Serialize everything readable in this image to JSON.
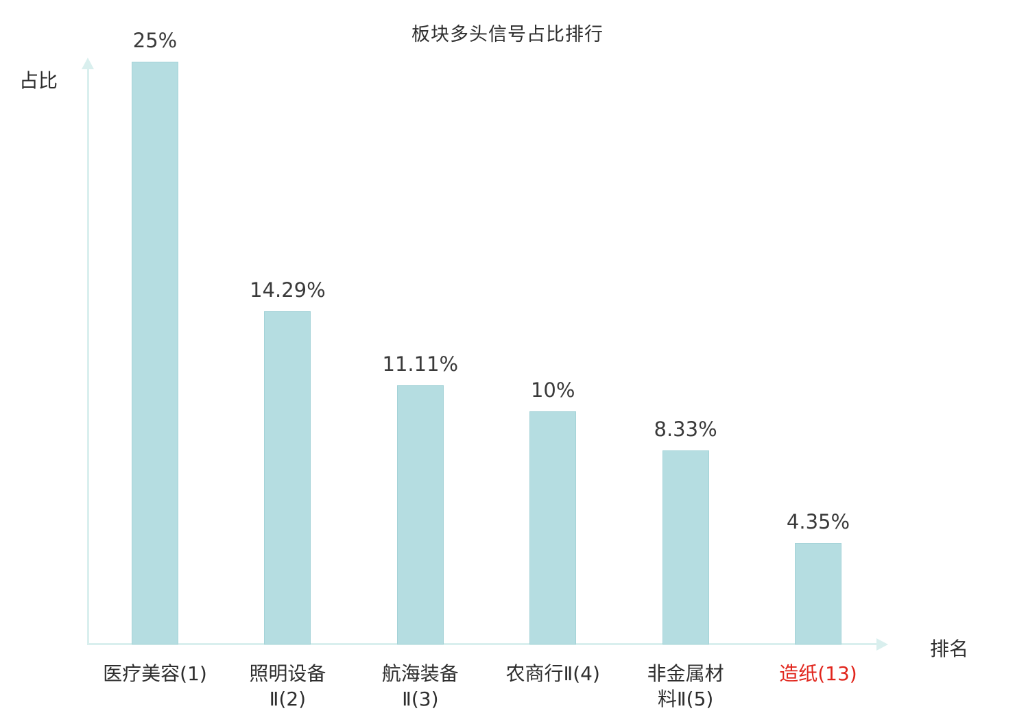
{
  "chart_data": {
    "type": "bar",
    "title": "板块多头信号占比排行",
    "xlabel": "排名",
    "ylabel": "占比",
    "categories": [
      "医疗美容(1)",
      "照明设备Ⅱ(2)",
      "航海装备Ⅱ(3)",
      "农商行Ⅱ(4)",
      "非金属材料Ⅱ(5)",
      "造纸(13)"
    ],
    "category_lines": [
      [
        "医疗美容(1)"
      ],
      [
        "照明设备",
        "Ⅱ(2)"
      ],
      [
        "航海装备",
        "Ⅱ(3)"
      ],
      [
        "农商行Ⅱ(4)"
      ],
      [
        "非金属材",
        "料Ⅱ(5)"
      ],
      [
        "造纸(13)"
      ]
    ],
    "values": [
      25,
      14.29,
      11.11,
      10,
      8.33,
      4.35
    ],
    "value_labels": [
      "25%",
      "14.29%",
      "11.11%",
      "10%",
      "8.33%",
      "4.35%"
    ],
    "highlight_index": 5,
    "ylim": [
      0,
      25
    ],
    "legend": "none",
    "grid": false,
    "bar_color": "#b5dde1",
    "bar_border_color": "#a3d2d7",
    "axis_color": "#d9efee",
    "text_color": "#2e2e2e",
    "highlight_color": "#e1251c"
  }
}
